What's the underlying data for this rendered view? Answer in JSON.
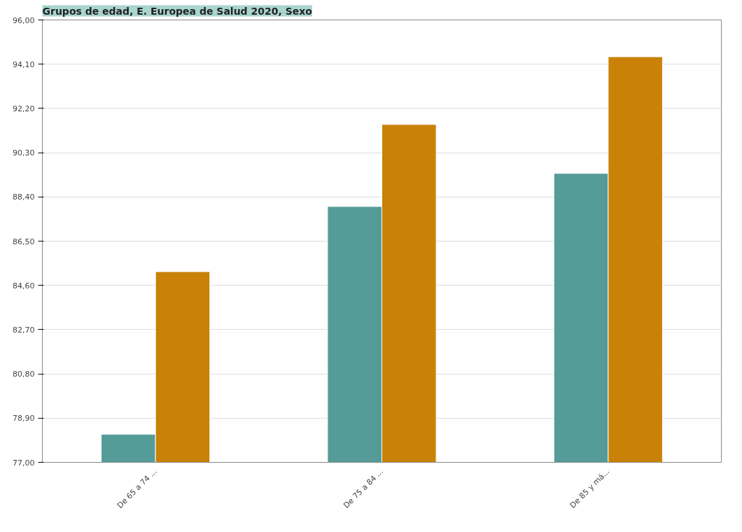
{
  "chart_data": {
    "type": "bar",
    "title": "Grupos de edad, E. Europea de Salud 2020, Sexo",
    "categories": [
      "De 65 a 74 ...",
      "De 75 a 84 ...",
      "De 85 y má..."
    ],
    "series": [
      {
        "color": "#559c98",
        "values": [
          78.21,
          87.99,
          89.41
        ]
      },
      {
        "color": "#c98107",
        "values": [
          85.19,
          91.51,
          94.42
        ]
      }
    ],
    "ylim": [
      77.0,
      96.0
    ],
    "yticks": [
      {
        "value": 77.0,
        "label": "77,00"
      },
      {
        "value": 78.9,
        "label": "78,90"
      },
      {
        "value": 80.8,
        "label": "80,80"
      },
      {
        "value": 82.7,
        "label": "82,70"
      },
      {
        "value": 84.6,
        "label": "84,60"
      },
      {
        "value": 86.5,
        "label": "86,50"
      },
      {
        "value": 88.4,
        "label": "88,40"
      },
      {
        "value": 90.3,
        "label": "90,30"
      },
      {
        "value": 92.2,
        "label": "92,20"
      },
      {
        "value": 94.1,
        "label": "94,10"
      },
      {
        "value": 96.0,
        "label": "96,00"
      }
    ],
    "grid": "y"
  }
}
